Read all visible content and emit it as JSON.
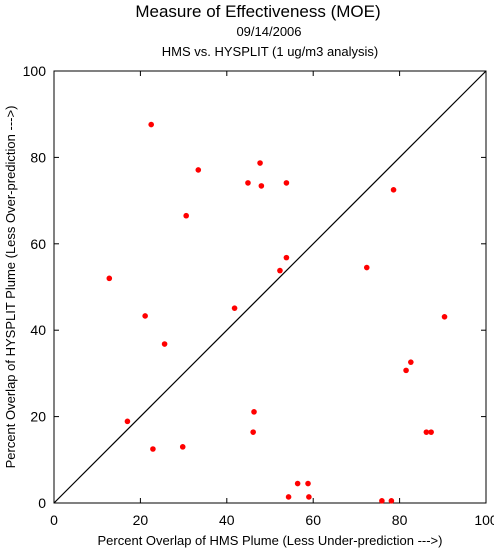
{
  "chart_data": {
    "type": "scatter",
    "title": "Measure of Effectiveness (MOE)",
    "subtitle_date": "09/14/2006",
    "subtitle_analysis": "HMS vs. HYSPLIT  (1 ug/m3 analysis)",
    "xlabel": "Percent Overlap of HMS Plume (Less Under-prediction --->)",
    "ylabel": "Percent Overlap of HYSPLIT Plume (Less Over-prediction --->)",
    "xlim": [
      0,
      100
    ],
    "ylim": [
      0,
      100
    ],
    "xticks": [
      "0",
      "20",
      "40",
      "60",
      "80",
      "100"
    ],
    "yticks": [
      "0",
      "20",
      "40",
      "60",
      "80",
      "100"
    ],
    "grid": false,
    "reference_line": "y = x",
    "point_color": "#ff0000",
    "points": [
      {
        "x": 22.5,
        "y": 87.6
      },
      {
        "x": 47.7,
        "y": 78.7
      },
      {
        "x": 33.4,
        "y": 77.1
      },
      {
        "x": 44.9,
        "y": 74.1
      },
      {
        "x": 48.0,
        "y": 73.4
      },
      {
        "x": 53.8,
        "y": 74.1
      },
      {
        "x": 78.6,
        "y": 72.5
      },
      {
        "x": 30.6,
        "y": 66.5
      },
      {
        "x": 53.8,
        "y": 56.8
      },
      {
        "x": 52.3,
        "y": 53.8
      },
      {
        "x": 72.4,
        "y": 54.5
      },
      {
        "x": 12.8,
        "y": 52.0
      },
      {
        "x": 41.8,
        "y": 45.1
      },
      {
        "x": 21.1,
        "y": 43.3
      },
      {
        "x": 90.4,
        "y": 43.1
      },
      {
        "x": 25.6,
        "y": 36.8
      },
      {
        "x": 82.6,
        "y": 32.6
      },
      {
        "x": 81.5,
        "y": 30.7
      },
      {
        "x": 46.3,
        "y": 21.1
      },
      {
        "x": 17.0,
        "y": 18.9
      },
      {
        "x": 46.1,
        "y": 16.4
      },
      {
        "x": 86.2,
        "y": 16.4
      },
      {
        "x": 87.3,
        "y": 16.4
      },
      {
        "x": 29.8,
        "y": 13.0
      },
      {
        "x": 22.9,
        "y": 12.5
      },
      {
        "x": 56.4,
        "y": 4.5
      },
      {
        "x": 58.8,
        "y": 4.5
      },
      {
        "x": 54.3,
        "y": 1.4
      },
      {
        "x": 59.0,
        "y": 1.4
      },
      {
        "x": 75.9,
        "y": 0.5
      },
      {
        "x": 78.1,
        "y": 0.5
      }
    ]
  }
}
